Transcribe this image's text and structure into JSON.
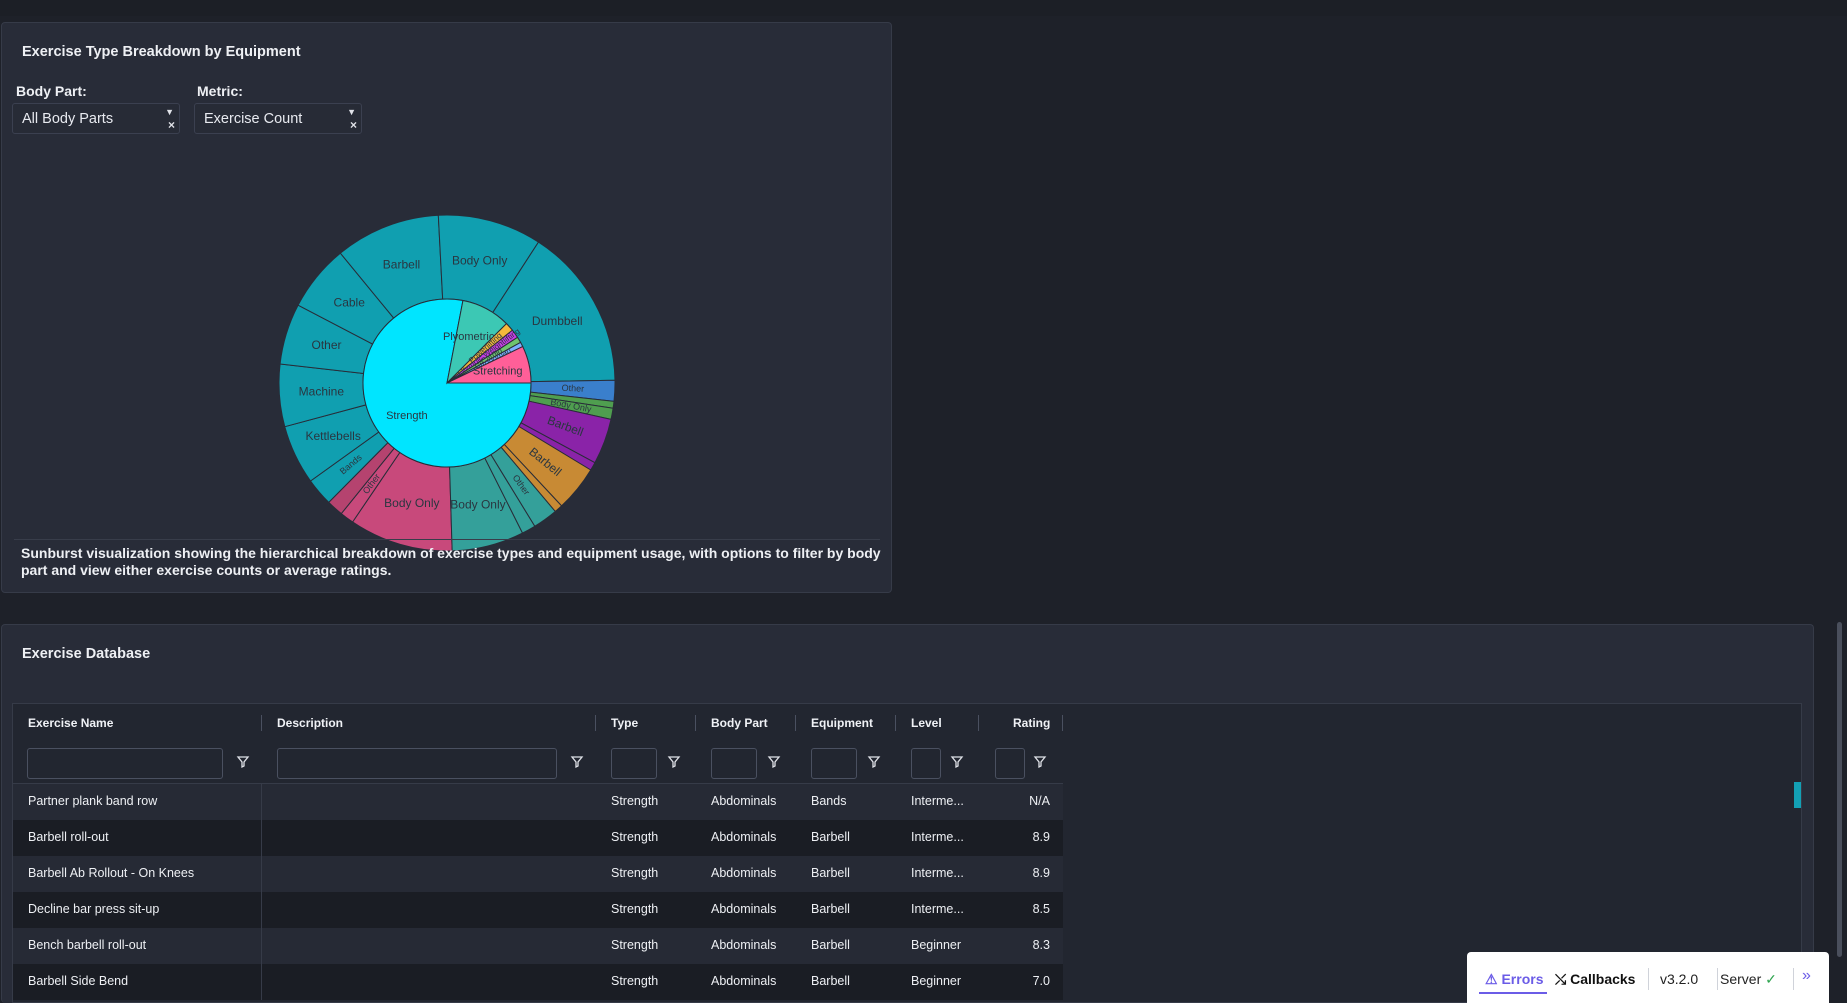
{
  "chart_panel": {
    "title": "Exercise Type Breakdown by Equipment",
    "body_part_label": "Body Part:",
    "body_part_value": "All Body Parts",
    "metric_label": "Metric:",
    "metric_value": "Exercise Count",
    "caption": "Sunburst visualization showing the hierarchical breakdown of exercise types and equipment usage, with options to filter by body part and view either exercise counts or average ratings."
  },
  "chart_data": {
    "type": "sunburst",
    "inner": [
      {
        "label": "Strength",
        "value": 70,
        "color": "#00e5ff"
      },
      {
        "label": "Plyometrics",
        "value": 8.5,
        "color": "#3cc8b4"
      },
      {
        "label": "Powerlifting",
        "value": 1.5,
        "color": "#f5b83c"
      },
      {
        "label": "Olympic Weightlifting",
        "value": 1.5,
        "color": "#c83ce6"
      },
      {
        "label": "Cardio",
        "value": 1,
        "color": "#6fc46f"
      },
      {
        "label": "Strongman",
        "value": 0.8,
        "color": "#7ab0ff"
      },
      {
        "label": "Stretching",
        "value": 6.4,
        "color": "#ff5f98"
      }
    ],
    "outer": [
      {
        "label": "Body Only",
        "value": 7.5,
        "color": "#c8497b"
      },
      {
        "label": "Other",
        "value": 1.0,
        "color": "#c8497b"
      },
      {
        "label": "",
        "value": 1.2,
        "color": "#b5436f"
      },
      {
        "label": "Bands",
        "value": 2.0,
        "color": "#109fb0"
      },
      {
        "label": "Kettlebells",
        "value": 4.3,
        "color": "#109fb0"
      },
      {
        "label": "Machine",
        "value": 4.5,
        "color": "#109fb0"
      },
      {
        "label": "Other",
        "value": 4.4,
        "color": "#109fb0"
      },
      {
        "label": "Cable",
        "value": 4.8,
        "color": "#109fb0"
      },
      {
        "label": "Barbell",
        "value": 7.6,
        "color": "#109fb0"
      },
      {
        "label": "Body Only",
        "value": 7.5,
        "color": "#109fb0"
      },
      {
        "label": "Dumbbell",
        "value": 11.7,
        "color": "#109fb0"
      },
      {
        "label": "Other",
        "value": 1.5,
        "color": "#3a7fcc"
      },
      {
        "label": "",
        "value": 0.5,
        "color": "#4f9e4f"
      },
      {
        "label": "Body Only",
        "value": 0.8,
        "color": "#4f9e4f"
      },
      {
        "label": "Barbell",
        "value": 3.3,
        "color": "#8a23a8"
      },
      {
        "label": "",
        "value": 0.6,
        "color": "#8a23a8"
      },
      {
        "label": "Barbell",
        "value": 3.3,
        "color": "#c88a34"
      },
      {
        "label": "",
        "value": 0.6,
        "color": "#c88a34"
      },
      {
        "label": "Other",
        "value": 1.8,
        "color": "#34a09a"
      },
      {
        "label": "",
        "value": 1.0,
        "color": "#34a09a"
      },
      {
        "label": "Body Only",
        "value": 5.2,
        "color": "#34a09a"
      }
    ]
  },
  "database": {
    "title": "Exercise Database",
    "columns": [
      "Exercise Name",
      "Description",
      "Type",
      "Body Part",
      "Equipment",
      "Level",
      "Rating"
    ],
    "rows": [
      {
        "name": "Partner plank band row",
        "description": "",
        "type": "Strength",
        "body_part": "Abdominals",
        "equipment": "Bands",
        "level": "Interme...",
        "rating": "N/A"
      },
      {
        "name": "Barbell roll-out",
        "description": "",
        "type": "Strength",
        "body_part": "Abdominals",
        "equipment": "Barbell",
        "level": "Interme...",
        "rating": "8.9"
      },
      {
        "name": "Barbell Ab Rollout - On Knees",
        "description": "",
        "type": "Strength",
        "body_part": "Abdominals",
        "equipment": "Barbell",
        "level": "Interme...",
        "rating": "8.9"
      },
      {
        "name": "Decline bar press sit-up",
        "description": "",
        "type": "Strength",
        "body_part": "Abdominals",
        "equipment": "Barbell",
        "level": "Interme...",
        "rating": "8.5"
      },
      {
        "name": "Bench barbell roll-out",
        "description": "",
        "type": "Strength",
        "body_part": "Abdominals",
        "equipment": "Barbell",
        "level": "Beginner",
        "rating": "8.3"
      },
      {
        "name": "Barbell Side Bend",
        "description": "",
        "type": "Strength",
        "body_part": "Abdominals",
        "equipment": "Barbell",
        "level": "Beginner",
        "rating": "7.0"
      }
    ]
  },
  "devtools": {
    "errors": "Errors",
    "callbacks": "Callbacks",
    "version": "v3.2.0",
    "server": "Server"
  }
}
